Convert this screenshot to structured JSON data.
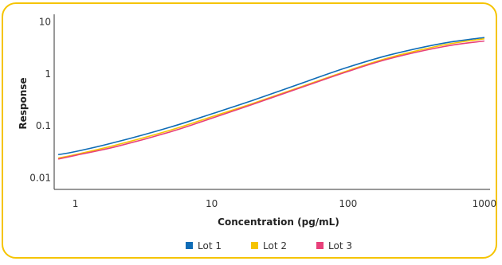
{
  "chart_data": {
    "type": "line",
    "xlabel": "Concentration (pg/mL)",
    "ylabel": "Response",
    "x_scale": "log",
    "y_scale": "log",
    "xlim": [
      0.7,
      1100
    ],
    "ylim": [
      0.006,
      14
    ],
    "x_ticks": [
      {
        "value": 1,
        "label": "1"
      },
      {
        "value": 10,
        "label": "10"
      },
      {
        "value": 100,
        "label": "100"
      },
      {
        "value": 1000,
        "label": "1000"
      }
    ],
    "y_ticks": [
      {
        "value": 0.01,
        "label": "0.01"
      },
      {
        "value": 0.1,
        "label": "0.1"
      },
      {
        "value": 1,
        "label": "1"
      },
      {
        "value": 10,
        "label": "10"
      }
    ],
    "grid": false,
    "legend_position": "bottom",
    "series": [
      {
        "name": "Lot 1",
        "color": "#0f6cb6",
        "points": [
          [
            0.75,
            0.028
          ],
          [
            1,
            0.032
          ],
          [
            2,
            0.049
          ],
          [
            5,
            0.095
          ],
          [
            10,
            0.17
          ],
          [
            20,
            0.31
          ],
          [
            50,
            0.72
          ],
          [
            100,
            1.35
          ],
          [
            200,
            2.3
          ],
          [
            500,
            3.9
          ],
          [
            1000,
            5.0
          ]
        ]
      },
      {
        "name": "Lot 2",
        "color": "#f5c400",
        "points": [
          [
            0.75,
            0.024
          ],
          [
            1,
            0.028
          ],
          [
            2,
            0.043
          ],
          [
            5,
            0.083
          ],
          [
            10,
            0.15
          ],
          [
            20,
            0.27
          ],
          [
            50,
            0.62
          ],
          [
            100,
            1.16
          ],
          [
            200,
            2.05
          ],
          [
            500,
            3.6
          ],
          [
            1000,
            4.75
          ]
        ]
      },
      {
        "name": "Lot 3",
        "color": "#e8407a",
        "points": [
          [
            0.75,
            0.023
          ],
          [
            1,
            0.027
          ],
          [
            2,
            0.04
          ],
          [
            5,
            0.077
          ],
          [
            10,
            0.14
          ],
          [
            20,
            0.26
          ],
          [
            50,
            0.6
          ],
          [
            100,
            1.12
          ],
          [
            200,
            1.95
          ],
          [
            500,
            3.35
          ],
          [
            1000,
            4.3
          ]
        ]
      }
    ]
  }
}
